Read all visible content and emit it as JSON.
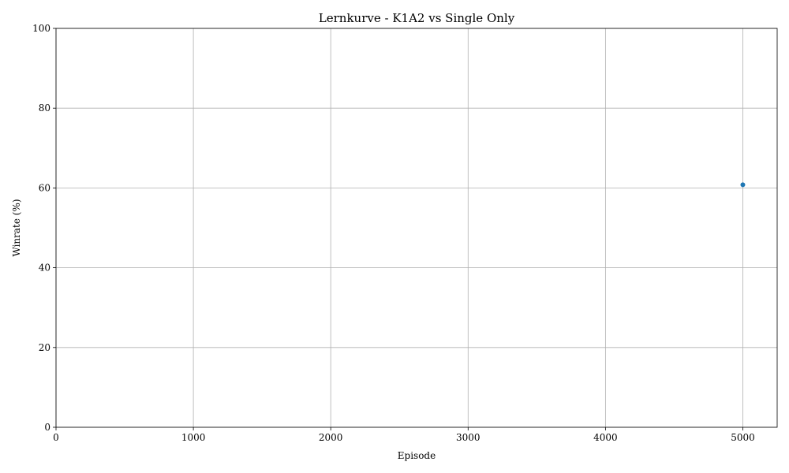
{
  "chart_data": {
    "type": "line",
    "title": "Lernkurve - K1A2 vs Single Only",
    "xlabel": "Episode",
    "ylabel": "Winrate (%)",
    "xlim": [
      0,
      5250
    ],
    "ylim": [
      0,
      100
    ],
    "x_ticks": [
      "0",
      "1000",
      "2000",
      "3000",
      "4000",
      "5000"
    ],
    "y_ticks": [
      "0",
      "20",
      "40",
      "60",
      "80",
      "100"
    ],
    "grid": true,
    "series": [
      {
        "color": "#1f77b4",
        "marker": "circle",
        "points": [
          {
            "x": 5000,
            "y": 60.8
          }
        ]
      }
    ]
  }
}
